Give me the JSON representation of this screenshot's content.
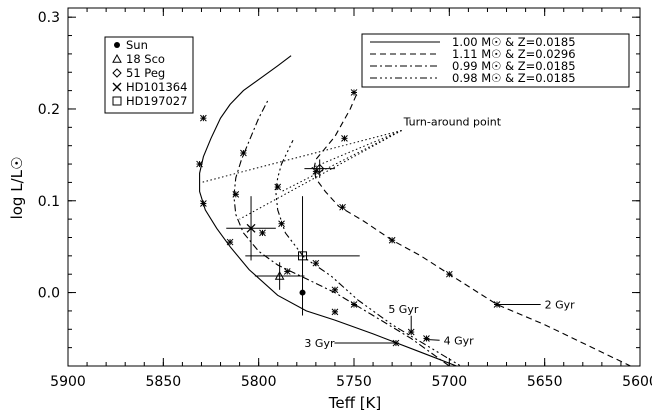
{
  "chart_data": {
    "type": "line",
    "xlabel": "Teff [K]",
    "ylabel": "log L/L☉",
    "xlim": [
      5900,
      5600
    ],
    "ylim": [
      -0.08,
      0.31
    ],
    "x_inverted": true,
    "grid": false,
    "x_ticks": [
      5900,
      5850,
      5800,
      5750,
      5700,
      5650,
      5600
    ],
    "x_tick_labels": [
      "5900",
      "5850",
      "5800",
      "5750",
      "5700",
      "5650",
      "5600"
    ],
    "y_ticks": [
      0.0,
      0.1,
      0.2,
      0.3
    ],
    "y_tick_labels": [
      "0.0",
      "0.1",
      "0.2",
      "0.3"
    ],
    "legend_stars": {
      "placement": "top-left",
      "entries": [
        {
          "symbol": "filled-circle",
          "label": "Sun"
        },
        {
          "symbol": "triangle",
          "label": "18 Sco"
        },
        {
          "symbol": "diamond",
          "label": "51 Peg"
        },
        {
          "symbol": "cross",
          "label": "HD101364"
        },
        {
          "symbol": "square",
          "label": "HD197027"
        }
      ]
    },
    "legend_tracks": {
      "placement": "top-right",
      "entries": [
        {
          "dash": "solid",
          "label": "1.00 M☉ & Z=0.0185"
        },
        {
          "dash": "dashed",
          "label": "1.11 M☉ & Z=0.0296"
        },
        {
          "dash": "dashdot",
          "label": "0.99 M☉ & Z=0.0185"
        },
        {
          "dash": "dashdotdotdot",
          "label": "0.98 M☉ & Z=0.0185"
        }
      ]
    },
    "series": [
      {
        "dash": "solid",
        "x": [
          5690,
          5715,
          5740,
          5760,
          5775,
          5790,
          5805,
          5815,
          5822,
          5828,
          5831,
          5831,
          5829,
          5825,
          5820,
          5815,
          5808,
          5798,
          5790,
          5783
        ],
        "y": [
          -0.085,
          -0.065,
          -0.045,
          -0.03,
          -0.02,
          -0.003,
          0.025,
          0.05,
          0.07,
          0.09,
          0.11,
          0.13,
          0.148,
          0.168,
          0.19,
          0.205,
          0.22,
          0.235,
          0.247,
          0.258
        ]
      },
      {
        "dash": "dashed",
        "x": [
          5600,
          5625,
          5650,
          5675,
          5700,
          5715,
          5730,
          5745,
          5758,
          5765,
          5770,
          5771,
          5770,
          5766,
          5760,
          5756,
          5752,
          5748
        ],
        "y": [
          -0.085,
          -0.06,
          -0.035,
          -0.013,
          0.02,
          0.04,
          0.057,
          0.078,
          0.094,
          0.11,
          0.124,
          0.135,
          0.145,
          0.155,
          0.17,
          0.185,
          0.2,
          0.219
        ]
      },
      {
        "dash": "dashdot",
        "x": [
          5700,
          5720,
          5740,
          5760,
          5775,
          5790,
          5800,
          5808,
          5812,
          5813,
          5812,
          5809,
          5805,
          5800,
          5795
        ],
        "y": [
          -0.08,
          -0.05,
          -0.025,
          0.0,
          0.015,
          0.03,
          0.045,
          0.065,
          0.085,
          0.105,
          0.125,
          0.145,
          0.165,
          0.19,
          0.21
        ]
      },
      {
        "dash": "dashdotdotdot",
        "x": [
          5690,
          5710,
          5730,
          5748,
          5762,
          5776,
          5786,
          5790,
          5791,
          5790,
          5788,
          5785,
          5782
        ],
        "y": [
          -0.085,
          -0.06,
          -0.035,
          -0.008,
          0.018,
          0.038,
          0.065,
          0.09,
          0.11,
          0.125,
          0.14,
          0.153,
          0.166
        ]
      }
    ],
    "age_markers": [
      {
        "x": 5829,
        "y": 0.19
      },
      {
        "x": 5831,
        "y": 0.14
      },
      {
        "x": 5829,
        "y": 0.097
      },
      {
        "x": 5815,
        "y": 0.055
      },
      {
        "x": 5808,
        "y": 0.152
      },
      {
        "x": 5812,
        "y": 0.107
      },
      {
        "x": 5798,
        "y": 0.065
      },
      {
        "x": 5785,
        "y": 0.023
      },
      {
        "x": 5760,
        "y": -0.021
      },
      {
        "x": 5728,
        "y": -0.055
      },
      {
        "x": 5790,
        "y": 0.115
      },
      {
        "x": 5788,
        "y": 0.075
      },
      {
        "x": 5770,
        "y": 0.032
      },
      {
        "x": 5760,
        "y": 0.003
      },
      {
        "x": 5750,
        "y": -0.013
      },
      {
        "x": 5720,
        "y": -0.043
      },
      {
        "x": 5712,
        "y": -0.05
      },
      {
        "x": 5755,
        "y": 0.168
      },
      {
        "x": 5750,
        "y": 0.218
      },
      {
        "x": 5770,
        "y": 0.132
      },
      {
        "x": 5756,
        "y": 0.093
      },
      {
        "x": 5730,
        "y": 0.057
      },
      {
        "x": 5700,
        "y": 0.02
      },
      {
        "x": 5675,
        "y": -0.013
      },
      {
        "x": 5690,
        "y": -0.085
      }
    ],
    "stars": [
      {
        "name": "Sun",
        "symbol": "filled-circle",
        "x": 5777,
        "y": 0.0,
        "ex": 0,
        "ey": 0
      },
      {
        "name": "18 Sco",
        "symbol": "triangle",
        "x": 5789,
        "y": 0.018,
        "ex": 13,
        "ey": 0.015
      },
      {
        "name": "51 Peg",
        "symbol": "diamond",
        "x": 5768,
        "y": 0.135,
        "ex": 8,
        "ey": 0.01
      },
      {
        "name": "HD101364",
        "symbol": "cross",
        "x": 5804,
        "y": 0.07,
        "ex": 13,
        "ey": 0.035
      },
      {
        "name": "HD197027",
        "symbol": "square",
        "x": 5777,
        "y": 0.04,
        "ex": 30,
        "ey": 0.065
      }
    ],
    "annotations": {
      "turnaround": {
        "label": "Turn-around point",
        "label_x": 5724,
        "label_y": 0.182,
        "targets": [
          {
            "x": 5830,
            "y": 0.12
          },
          {
            "x": 5810,
            "y": 0.08
          },
          {
            "x": 5788,
            "y": 0.11
          },
          {
            "x": 5773,
            "y": 0.135
          }
        ]
      },
      "ages": [
        {
          "label": "5 Gyr",
          "x": 5720,
          "y": -0.043,
          "label_x": 5732,
          "label_y": -0.022
        },
        {
          "label": "4 Gyr",
          "x": 5713,
          "y": -0.051,
          "label_x": 5703,
          "label_y": -0.052
        },
        {
          "label": "3 Gyr",
          "x": 5728,
          "y": -0.055,
          "label_x": 5776,
          "label_y": -0.055
        },
        {
          "label": "2 Gyr",
          "x": 5675,
          "y": -0.013,
          "label_x": 5650,
          "label_y": -0.013
        }
      ]
    }
  }
}
